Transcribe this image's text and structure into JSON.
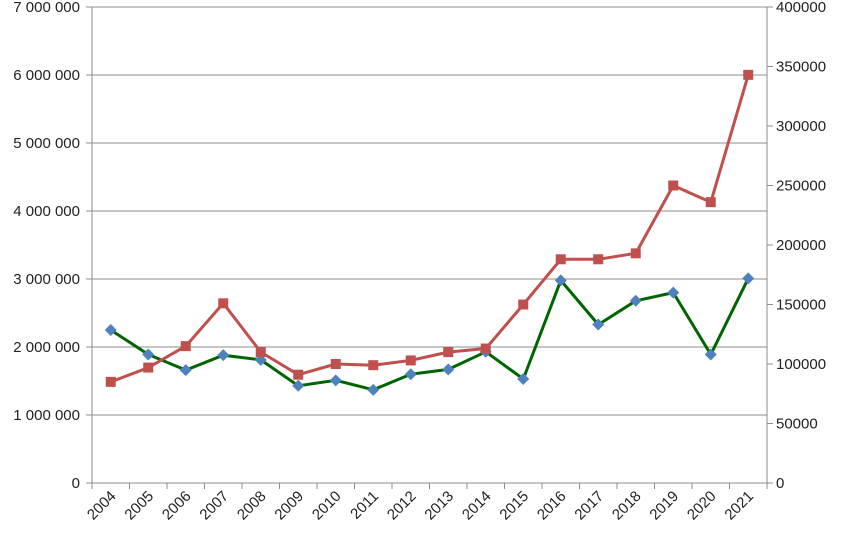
{
  "chart_data": {
    "type": "line",
    "title": "",
    "xlabel": "",
    "ylabel": "",
    "y2label": "",
    "categories": [
      "2004",
      "2005",
      "2006",
      "2007",
      "2008",
      "2009",
      "2010",
      "2011",
      "2012",
      "2013",
      "2014",
      "2015",
      "2016",
      "2017",
      "2018",
      "2019",
      "2020",
      "2021"
    ],
    "ylim": [
      0,
      7000000
    ],
    "y2lim": [
      0,
      400000
    ],
    "y_ticks": [
      0,
      1000000,
      2000000,
      3000000,
      4000000,
      5000000,
      6000000,
      7000000
    ],
    "y_tick_labels": [
      "0",
      "1 000 000",
      "2 000 000",
      "3 000 000",
      "4 000 000",
      "5 000 000",
      "6 000 000",
      "7 000 000"
    ],
    "y2_ticks": [
      0,
      50000,
      100000,
      150000,
      200000,
      250000,
      300000,
      350000,
      400000
    ],
    "y2_tick_labels": [
      "0",
      "50000",
      "100000",
      "150000",
      "200000",
      "250000",
      "300000",
      "350000",
      "400000"
    ],
    "grid": "horizontal",
    "series": [
      {
        "axis": "left",
        "color": "#006400",
        "marker_color": "#4F81BD",
        "marker": "diamond",
        "values": [
          2250000,
          1890000,
          1660000,
          1880000,
          1810000,
          1430000,
          1510000,
          1370000,
          1600000,
          1670000,
          1930000,
          1530000,
          2980000,
          2330000,
          2680000,
          2800000,
          1890000,
          3010000
        ]
      },
      {
        "axis": "right",
        "color": "#C0504D",
        "marker_color": "#C0504D",
        "marker": "square",
        "values": [
          85000,
          97000,
          115000,
          151000,
          110000,
          91000,
          100000,
          99000,
          103000,
          110000,
          113000,
          150000,
          188000,
          188000,
          193000,
          250000,
          236000,
          343000
        ]
      }
    ]
  }
}
